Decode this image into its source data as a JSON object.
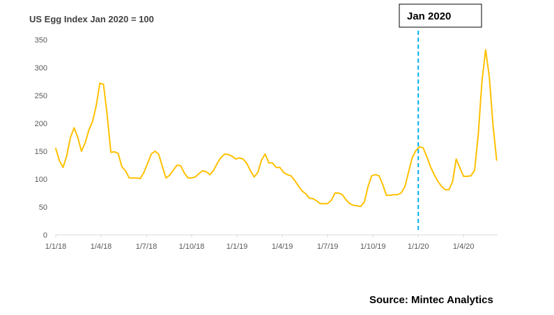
{
  "chart_data": {
    "type": "line",
    "title": "US Egg Index Jan 2020 = 100",
    "xlabel": "",
    "ylabel": "",
    "ylim": [
      0,
      350
    ],
    "yticks": [
      "0",
      "50",
      "100",
      "150",
      "200",
      "250",
      "300",
      "350"
    ],
    "xticks": [
      "1/1/18",
      "1/4/18",
      "1/7/18",
      "1/10/18",
      "1/1/19",
      "1/4/19",
      "1/7/19",
      "1/10/19",
      "1/1/20",
      "1/4/20"
    ],
    "grid": false,
    "legend": "none",
    "series_color": "#FFC000",
    "marker_color": "#00B0F0",
    "marker": {
      "x": "1/1/20",
      "label": "Jan 2020"
    },
    "source": "Source: Mintec  Analytics",
    "series": [
      {
        "x": [
          0,
          0.1,
          0.23,
          0.33,
          0.45,
          0.56,
          0.68,
          0.8,
          0.91,
          1.03,
          1.13,
          1.25,
          1.35,
          1.47,
          1.58,
          1.68,
          1.79,
          1.9,
          2.03,
          2.13,
          2.25,
          2.36,
          2.47,
          2.58,
          2.68,
          2.79,
          2.92,
          3.03,
          3.14,
          3.24,
          3.37,
          3.47,
          3.6,
          3.72,
          3.82,
          3.93,
          4.05,
          4.15,
          4.28,
          4.38,
          4.5,
          4.6,
          4.72,
          4.85,
          4.95,
          5.07,
          5.18,
          5.28,
          5.4,
          5.5,
          5.63,
          5.73,
          5.85,
          5.95,
          6.07,
          6.18,
          6.3,
          6.4,
          6.52,
          6.62,
          6.75,
          6.85,
          6.97,
          7.07,
          7.18,
          7.3,
          7.4,
          7.52,
          7.63,
          7.75,
          7.85,
          7.97,
          8.07,
          8.18,
          8.3,
          8.4,
          8.52,
          8.62,
          8.73,
          8.85,
          8.95,
          9.07,
          9.18,
          9.3,
          9.43,
          9.55,
          9.65,
          9.75
        ],
        "values": [
          155,
          133,
          121,
          142,
          175,
          192,
          175,
          150,
          165,
          188,
          203,
          231,
          272,
          270,
          215,
          148,
          149,
          146,
          122,
          115,
          102,
          102,
          102,
          101,
          112,
          128,
          145,
          150,
          145,
          123,
          102,
          107,
          116,
          125,
          124,
          111,
          102,
          102,
          104,
          110,
          115,
          113,
          108,
          116,
          129,
          139,
          145,
          144,
          141,
          136,
          138,
          136,
          128,
          115,
          104,
          112,
          134,
          145,
          129,
          129,
          121,
          121,
          112,
          108,
          106,
          98,
          88,
          79,
          74,
          66,
          65,
          61,
          56,
          56,
          56,
          62,
          75,
          75,
          72,
          63,
          56,
          53,
          52,
          51,
          59,
          87,
          106,
          108
        ],
        "notes_truncated": false
      }
    ],
    "series_tail": {
      "values_after": [
        106,
        90,
        71,
        71,
        72,
        72,
        75,
        86,
        112,
        138,
        151,
        158,
        156,
        140,
        122,
        108,
        96,
        87,
        81,
        81,
        95,
        136,
        120,
        105,
        105,
        106,
        116,
        180,
        275,
        332,
        283,
        198,
        134
      ]
    }
  }
}
